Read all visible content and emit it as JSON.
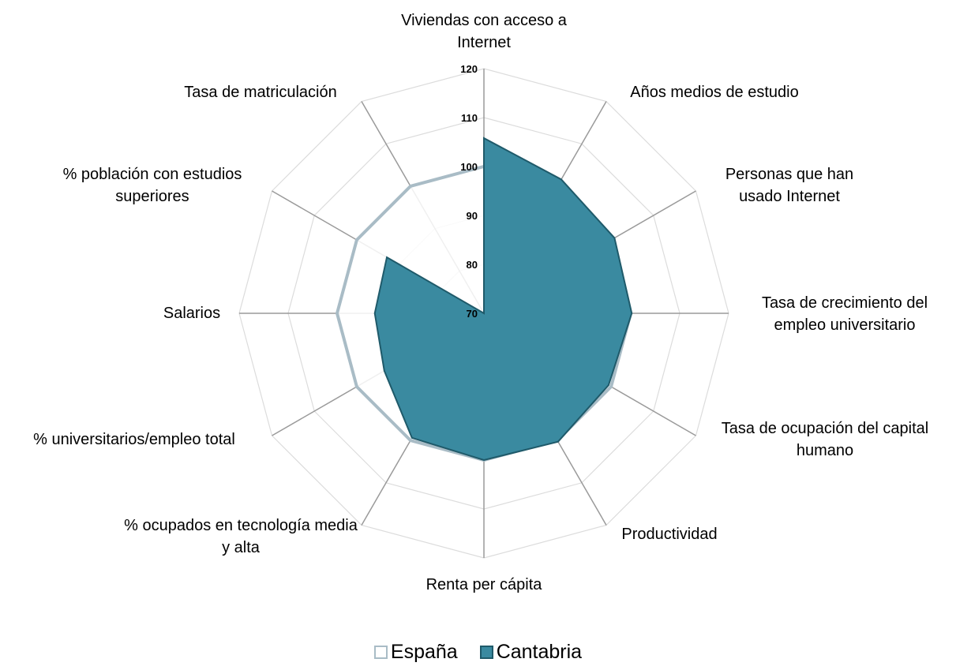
{
  "chart_data": {
    "type": "radar",
    "categories": [
      "Viviendas con acceso  a Internet",
      "Años medios  de estudio",
      "Personas que han usado Internet",
      "Tasa de crecimiento del empleo universitario",
      "Tasa de ocupación del capital humano",
      "Productividad",
      "Renta per cápita",
      "% ocupados en tecnología media y alta",
      "% universitarios/empleo total",
      "Salarios",
      "% población con estudios superiores",
      "Tasa de matriculación"
    ],
    "series": [
      {
        "name": "España",
        "color": "#ffffff",
        "stroke": "#a9bcc6",
        "values": [
          100,
          100,
          100,
          100,
          100,
          100,
          100,
          100,
          100,
          100,
          100,
          100
        ]
      },
      {
        "name": "Cantabria",
        "color": "#3a8aa0",
        "stroke": "#1f5a6a",
        "values": [
          105.8,
          101.6,
          100.8,
          100.2,
          99.4,
          100.3,
          100,
          99.4,
          93.5,
          92.3,
          92.9,
          70
        ]
      }
    ],
    "ylim": [
      70,
      120
    ],
    "yticks": [
      70,
      80,
      90,
      100,
      110,
      120
    ],
    "grid": true,
    "legend": "bottom"
  }
}
